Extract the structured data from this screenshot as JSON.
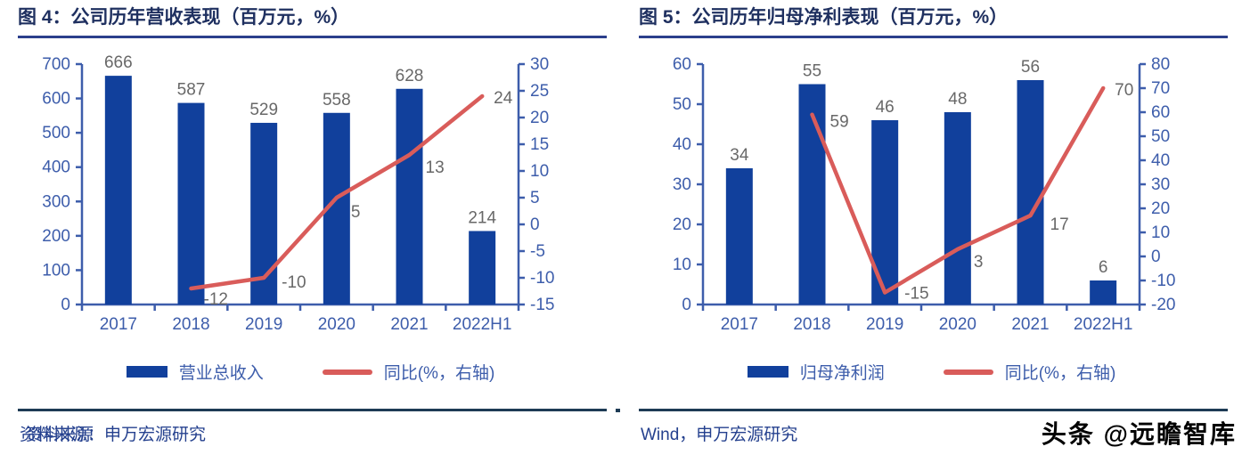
{
  "colors": {
    "bar": "#11409C",
    "line": "#D95C5A",
    "axis": "#3D5DAB",
    "title": "#1F3060",
    "title_rule": "#2B3F8C",
    "value_label": "#686868",
    "rule": "#1E3B55",
    "source": "#24408E",
    "watermark": "#000000"
  },
  "panels": {
    "left": {
      "title": "图 4：公司历年营收表现（百万元，%）",
      "source": "资料来源：申万宏源研究",
      "source_overlay": "资料来源"
    },
    "right": {
      "title": "图 5：公司历年归母净利表现（百万元，%）",
      "source": "Wind，申万宏源研究",
      "watermark": "头条 @远瞻智库"
    }
  },
  "chart_data": [
    {
      "type": "bar",
      "subtype": "bar+line dual-axis combo",
      "title": "图 4：公司历年营收表现（百万元，%）",
      "categories": [
        "2017",
        "2018",
        "2019",
        "2020",
        "2021",
        "2022H1"
      ],
      "series": [
        {
          "name": "营业总收入",
          "type": "bar",
          "axis": "left",
          "values": [
            666,
            587,
            529,
            558,
            628,
            214
          ]
        },
        {
          "name": "同比(%，右轴)",
          "type": "line",
          "axis": "right",
          "values": [
            null,
            -12,
            -10,
            5,
            13,
            24
          ]
        }
      ],
      "left_axis": {
        "min": 0,
        "max": 700,
        "step": 100
      },
      "right_axis": {
        "min": -15,
        "max": 30,
        "step": 5
      },
      "grid": false,
      "legend_position": "bottom",
      "data_labels": true
    },
    {
      "type": "bar",
      "subtype": "bar+line dual-axis combo",
      "title": "图 5：公司历年归母净利表现（百万元，%）",
      "categories": [
        "2017",
        "2018",
        "2019",
        "2020",
        "2021",
        "2022H1"
      ],
      "series": [
        {
          "name": "归母净利润",
          "type": "bar",
          "axis": "left",
          "values": [
            34,
            55,
            46,
            48,
            56,
            6
          ]
        },
        {
          "name": "同比(%，右轴)",
          "type": "line",
          "axis": "right",
          "values": [
            null,
            59,
            -15,
            3,
            17,
            70
          ]
        }
      ],
      "left_axis": {
        "min": 0,
        "max": 60,
        "step": 10
      },
      "right_axis": {
        "min": -20,
        "max": 80,
        "step": 10
      },
      "grid": false,
      "legend_position": "bottom",
      "data_labels": true
    }
  ]
}
